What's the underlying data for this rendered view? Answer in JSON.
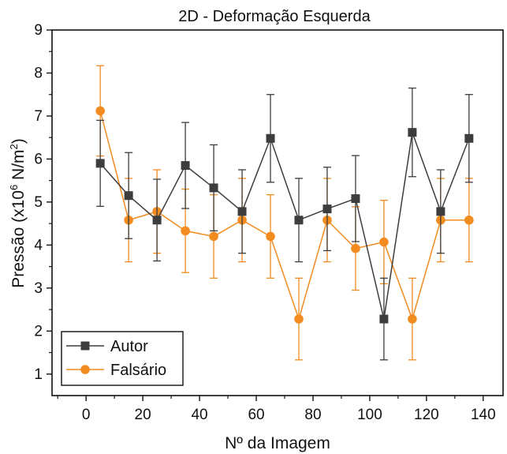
{
  "chart_data": {
    "type": "line",
    "title": "2D - Deformação Esquerda",
    "xlabel": "Nº da Imagem",
    "ylabel": "Pressão (x10",
    "ylabel_sup1": "6",
    "ylabel_mid": " N/m",
    "ylabel_sup2": "2",
    "ylabel_end": ")",
    "xlim": [
      -12,
      147
    ],
    "ylim": [
      0.5,
      9
    ],
    "xticks": [
      0,
      20,
      40,
      60,
      80,
      100,
      120,
      140
    ],
    "yticks": [
      1,
      2,
      3,
      4,
      5,
      6,
      7,
      8,
      9
    ],
    "grid": false,
    "legend_position": "bottom-left",
    "x": [
      5,
      15,
      25,
      35,
      45,
      55,
      65,
      75,
      85,
      95,
      105,
      115,
      125,
      135
    ],
    "series": [
      {
        "name": "Autor",
        "color": "#3d3d3d",
        "marker": "square",
        "values": [
          5.9,
          5.15,
          4.58,
          5.85,
          5.33,
          4.78,
          6.48,
          4.58,
          4.84,
          5.08,
          2.28,
          6.62,
          4.78,
          6.48
        ],
        "error": [
          1.0,
          1.0,
          0.95,
          1.0,
          1.0,
          0.97,
          1.02,
          0.97,
          0.97,
          1.0,
          0.95,
          1.03,
          0.97,
          1.02
        ]
      },
      {
        "name": "Falsário",
        "color": "#f28b20",
        "marker": "circle",
        "values": [
          7.12,
          4.58,
          4.78,
          4.33,
          4.2,
          4.58,
          4.2,
          2.28,
          4.58,
          3.92,
          4.07,
          2.28,
          4.58,
          4.58
        ],
        "error": [
          1.05,
          0.97,
          0.97,
          0.97,
          0.97,
          0.97,
          0.97,
          0.95,
          0.97,
          0.97,
          0.97,
          0.95,
          0.97,
          0.97
        ]
      }
    ]
  }
}
